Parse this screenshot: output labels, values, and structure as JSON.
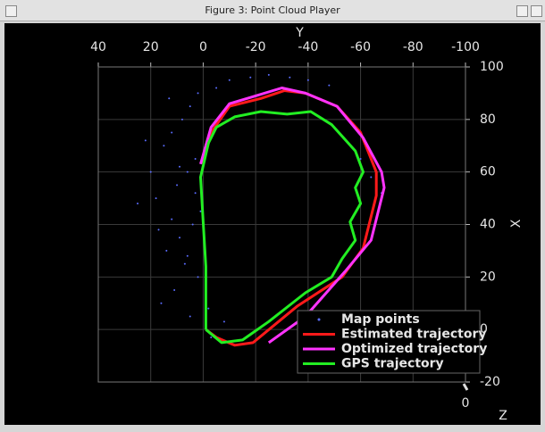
{
  "window_title": "Figure 3: Point Cloud Player",
  "chart_data": {
    "type": "line",
    "xlabel": "Y",
    "ylabel": "X",
    "zlabel": "Z",
    "xaxis_position": "top",
    "yaxis_position": "right",
    "xlim": [
      40,
      -100
    ],
    "xticks": [
      40,
      20,
      0,
      -20,
      -40,
      -60,
      -80,
      -100
    ],
    "ylim": [
      -20,
      100
    ],
    "yticks": [
      -20,
      0,
      20,
      40,
      60,
      80,
      100
    ],
    "zticks": [
      0
    ],
    "grid": true,
    "legend": "lower right",
    "series": [
      {
        "name": "Map points",
        "color": "#5a6cff",
        "style": "points",
        "x": [
          2,
          5,
          8,
          12,
          15,
          3,
          6,
          10,
          18,
          1,
          4,
          9,
          14,
          7,
          2,
          11,
          16,
          5,
          20,
          13,
          -5,
          -10,
          -18,
          -25,
          -33,
          -40,
          -48,
          -8,
          -3,
          6,
          12,
          3,
          -60,
          -64,
          -68,
          22,
          25,
          9,
          -2,
          17
        ],
        "values": [
          90,
          85,
          80,
          75,
          70,
          65,
          60,
          55,
          50,
          45,
          40,
          35,
          30,
          25,
          20,
          15,
          10,
          5,
          60,
          88,
          92,
          95,
          96,
          97,
          96,
          95,
          93,
          3,
          -3,
          28,
          42,
          52,
          65,
          58,
          52,
          72,
          48,
          62,
          8,
          38
        ]
      },
      {
        "name": "Estimated trajectory",
        "color": "#ff1a1a",
        "style": "line",
        "x": [
          -1,
          -5,
          -12,
          -19,
          -36,
          -53,
          -61,
          -66,
          -66,
          -60,
          -51,
          -39,
          -31,
          -22,
          -10,
          -3,
          0
        ],
        "values": [
          0,
          -3,
          -6,
          -5,
          9,
          20,
          31,
          51,
          60,
          75,
          85,
          90,
          91,
          88,
          85,
          75,
          63
        ]
      },
      {
        "name": "Optimized trajectory",
        "color": "#ff33ff",
        "style": "line",
        "x": [
          -25,
          -39,
          -54,
          -64,
          -69,
          -68,
          -61,
          -51,
          -39,
          -30,
          -20,
          -10,
          -3,
          1
        ],
        "values": [
          -5,
          5,
          22,
          34,
          54,
          60,
          73,
          85,
          90,
          92,
          89,
          86,
          77,
          63
        ]
      },
      {
        "name": "GPS trajectory",
        "color": "#22ee22",
        "style": "line",
        "x": [
          -1,
          -7,
          -15,
          -25,
          -39,
          -49,
          -53,
          -58,
          -56,
          -60,
          -58,
          -61,
          -58,
          -49,
          -41,
          -32,
          -22,
          -12,
          -5,
          -2,
          1,
          0,
          -1,
          -1,
          -1
        ],
        "values": [
          0,
          -5,
          -4,
          3,
          14,
          20,
          27,
          34,
          41,
          48,
          54,
          60,
          68,
          78,
          83,
          82,
          83,
          81,
          77,
          71,
          58,
          41,
          24,
          10,
          0
        ]
      }
    ]
  }
}
